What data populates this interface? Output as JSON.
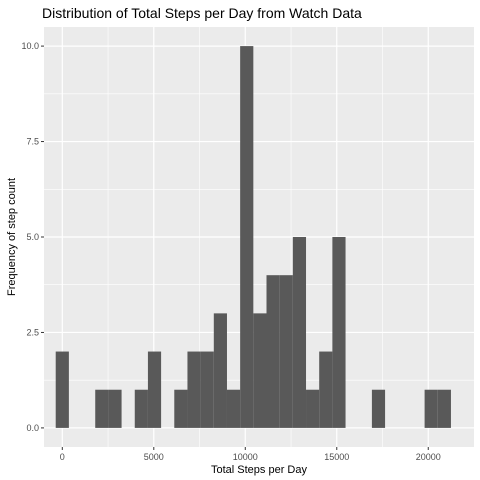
{
  "chart_data": {
    "type": "bar",
    "title": "Distribution of Total Steps per Day from Watch Data",
    "xlabel": "Total Steps per Day",
    "ylabel": "Frequency of step count",
    "xlim": [
      -1000,
      22500
    ],
    "ylim": [
      -0.5,
      10.5
    ],
    "x_ticks": [
      0,
      5000,
      10000,
      15000,
      20000
    ],
    "x_tick_labels": [
      "0",
      "5000",
      "10000",
      "15000",
      "20000"
    ],
    "y_ticks": [
      0,
      2.5,
      5,
      7.5,
      10
    ],
    "y_tick_labels": [
      "0.0",
      "2.5",
      "5.0",
      "7.5",
      "10.0"
    ],
    "grid": true,
    "bin_width": 720,
    "bins": [
      {
        "x0": -360,
        "x1": 360,
        "count": 2
      },
      {
        "x0": 360,
        "x1": 1080,
        "count": 0
      },
      {
        "x0": 1080,
        "x1": 1800,
        "count": 0
      },
      {
        "x0": 1800,
        "x1": 2520,
        "count": 1
      },
      {
        "x0": 2520,
        "x1": 3240,
        "count": 1
      },
      {
        "x0": 3240,
        "x1": 3960,
        "count": 0
      },
      {
        "x0": 3960,
        "x1": 4680,
        "count": 1
      },
      {
        "x0": 4680,
        "x1": 5400,
        "count": 2
      },
      {
        "x0": 5400,
        "x1": 6120,
        "count": 0
      },
      {
        "x0": 6120,
        "x1": 6840,
        "count": 1
      },
      {
        "x0": 6840,
        "x1": 7560,
        "count": 2
      },
      {
        "x0": 7560,
        "x1": 8280,
        "count": 2
      },
      {
        "x0": 8280,
        "x1": 9000,
        "count": 3
      },
      {
        "x0": 9000,
        "x1": 9720,
        "count": 1
      },
      {
        "x0": 9720,
        "x1": 10440,
        "count": 10
      },
      {
        "x0": 10440,
        "x1": 11160,
        "count": 3
      },
      {
        "x0": 11160,
        "x1": 11880,
        "count": 4
      },
      {
        "x0": 11880,
        "x1": 12600,
        "count": 4
      },
      {
        "x0": 12600,
        "x1": 13320,
        "count": 5
      },
      {
        "x0": 13320,
        "x1": 14040,
        "count": 1
      },
      {
        "x0": 14040,
        "x1": 14760,
        "count": 2
      },
      {
        "x0": 14760,
        "x1": 15480,
        "count": 5
      },
      {
        "x0": 15480,
        "x1": 16200,
        "count": 0
      },
      {
        "x0": 16200,
        "x1": 16920,
        "count": 0
      },
      {
        "x0": 16920,
        "x1": 17640,
        "count": 1
      },
      {
        "x0": 17640,
        "x1": 18360,
        "count": 0
      },
      {
        "x0": 18360,
        "x1": 19080,
        "count": 0
      },
      {
        "x0": 19080,
        "x1": 19800,
        "count": 0
      },
      {
        "x0": 19800,
        "x1": 20520,
        "count": 1
      },
      {
        "x0": 20520,
        "x1": 21240,
        "count": 1
      }
    ],
    "colors": {
      "panel_background": "#ebebeb",
      "grid_major": "#ffffff",
      "bar_fill": "#595959",
      "tick_text": "#4d4d4d"
    }
  }
}
